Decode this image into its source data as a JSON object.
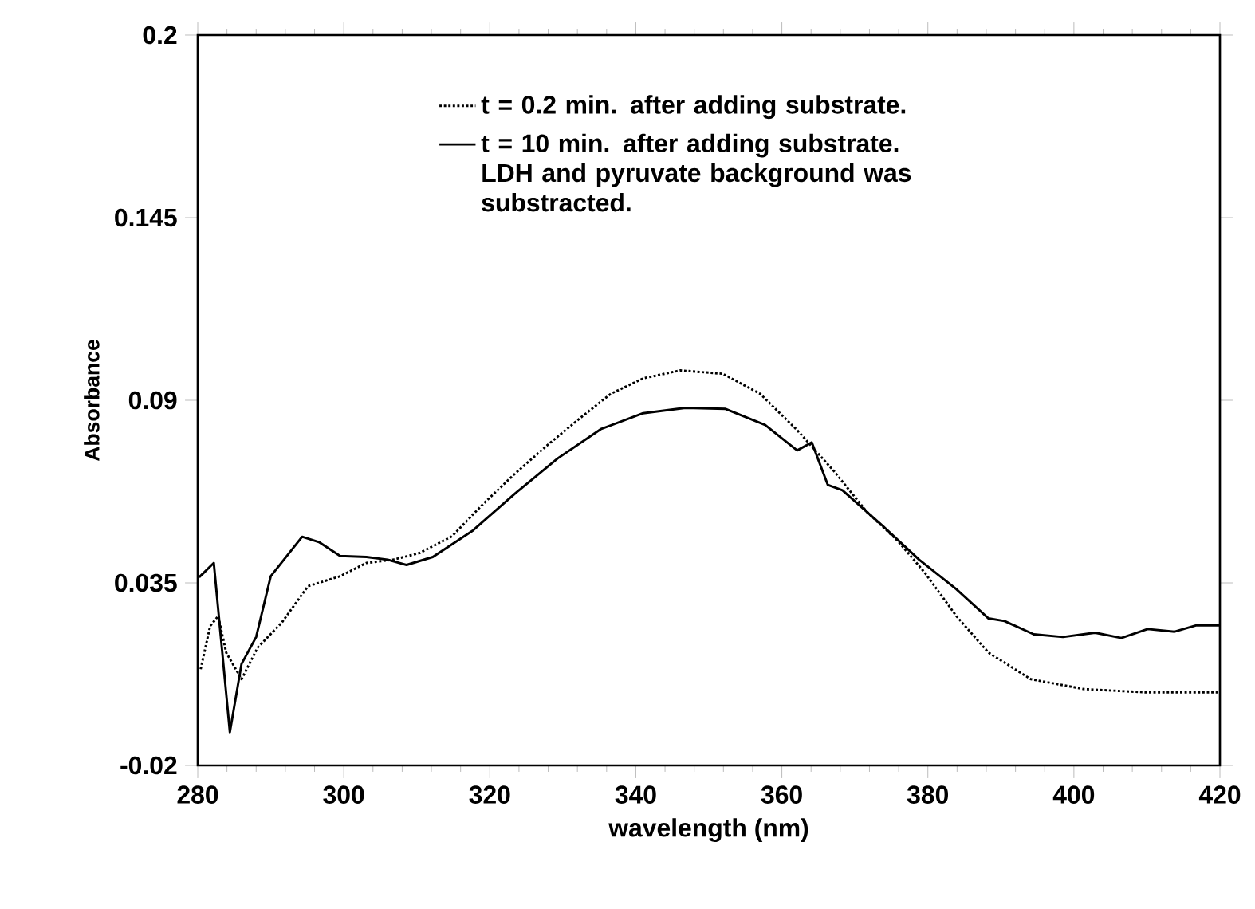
{
  "chart_data": {
    "type": "line",
    "xlabel": "wavelength  (nm)",
    "ylabel": "Absorbance",
    "xlim": [
      280,
      420
    ],
    "xticks": [
      280,
      300,
      320,
      340,
      360,
      380,
      400,
      420
    ],
    "ylim": [
      -0.02,
      0.2
    ],
    "yticks": [
      -0.02,
      0.035,
      0.09,
      0.145,
      0.2
    ],
    "legend": "top",
    "series": [
      {
        "name": "t = 0.2 min. after adding substrate.",
        "color": "#000000",
        "line_style": "dotted",
        "x": [
          280.4,
          281.7,
          282.8,
          283.9,
          286,
          288.2,
          291.5,
          295.1,
          299.5,
          303.1,
          306.8,
          310.4,
          314.8,
          319.2,
          323.5,
          327.9,
          332.3,
          336.6,
          341,
          346.1,
          351.9,
          357,
          362.1,
          367.2,
          371.6,
          375.9,
          379.6,
          383.9,
          388.3,
          394.1,
          401.4,
          410.1,
          420
        ],
        "values": [
          0.009,
          0.022,
          0.025,
          0.014,
          0.006,
          0.0155,
          0.023,
          0.034,
          0.037,
          0.041,
          0.042,
          0.044,
          0.049,
          0.059,
          0.068,
          0.0765,
          0.0845,
          0.092,
          0.0966,
          0.099,
          0.098,
          0.092,
          0.081,
          0.0685,
          0.0565,
          0.0476,
          0.038,
          0.025,
          0.014,
          0.006,
          0.003,
          0.002,
          0.002
        ]
      },
      {
        "name": "t = 10 min. after adding substrate. LDH and pyruvate background was substracted.",
        "color": "#000000",
        "line_style": "solid",
        "x": [
          280.2,
          282.2,
          284.4,
          286,
          288,
          290,
          294.3,
          296.6,
          299.5,
          303.1,
          306,
          308.6,
          312.2,
          317.7,
          323.5,
          329.3,
          335.2,
          341,
          346.8,
          352.3,
          357.7,
          362.1,
          364.1,
          366.3,
          368.3,
          373.7,
          378.8,
          383.9,
          388.3,
          390.5,
          394.5,
          398.5,
          402.9,
          406.5,
          410.1,
          413.8,
          416.7,
          420
        ],
        "values": [
          0.0367,
          0.041,
          -0.01,
          0.0106,
          0.0187,
          0.037,
          0.0489,
          0.0473,
          0.0431,
          0.0428,
          0.042,
          0.0404,
          0.0428,
          0.0508,
          0.062,
          0.0725,
          0.0813,
          0.0861,
          0.0877,
          0.0874,
          0.0826,
          0.0749,
          0.0773,
          0.0645,
          0.0629,
          0.0524,
          0.042,
          0.0331,
          0.0243,
          0.0235,
          0.0195,
          0.0187,
          0.02,
          0.0184,
          0.0211,
          0.0203,
          0.0222,
          0.0222
        ]
      }
    ]
  }
}
